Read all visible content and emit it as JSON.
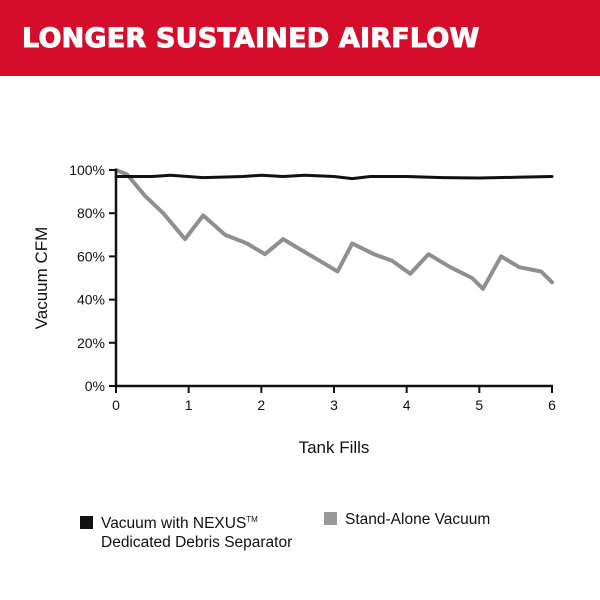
{
  "chart_data": {
    "type": "line",
    "title": "LONGER SUSTAINED AIRFLOW",
    "xlabel": "Tank Fills",
    "ylabel": "Vacuum CFM",
    "xlim": [
      0,
      6
    ],
    "ylim": [
      0,
      100
    ],
    "xticks": [
      "0",
      "1",
      "2",
      "3",
      "4",
      "5",
      "6"
    ],
    "yticks": [
      "0%",
      "20%",
      "40%",
      "60%",
      "80%",
      "100%"
    ],
    "grid": false,
    "legend_placement": "bottom",
    "series": [
      {
        "name": "Vacuum with NEXUS™ Dedicated Debris Separator",
        "name_line1": "Vacuum with NEXUS",
        "name_tm": "TM",
        "name_line2": "Dedicated Debris Separator",
        "color": "#111111",
        "x": [
          0,
          0.5,
          0.75,
          1.2,
          1.75,
          2,
          2.3,
          2.6,
          3,
          3.25,
          3.5,
          4,
          4.5,
          5,
          5.5,
          6
        ],
        "y": [
          97,
          97,
          97.6,
          96.5,
          97,
          97.6,
          97,
          97.6,
          97,
          96,
          97,
          97,
          96.5,
          96.3,
          96.6,
          97
        ]
      },
      {
        "name": "Stand-Alone Vacuum",
        "color": "#8f8f8f",
        "x": [
          0,
          0.15,
          0.4,
          0.65,
          0.95,
          1.2,
          1.5,
          1.8,
          2.05,
          2.3,
          2.6,
          2.8,
          3.05,
          3.25,
          3.55,
          3.8,
          4.05,
          4.3,
          4.6,
          4.9,
          5.05,
          5.3,
          5.55,
          5.85,
          6
        ],
        "y": [
          100,
          98,
          88,
          80,
          68,
          79,
          70,
          66,
          61,
          68,
          62,
          58,
          53,
          66,
          61,
          58,
          52,
          61,
          55,
          50,
          45,
          60,
          55,
          53,
          48
        ]
      }
    ]
  }
}
